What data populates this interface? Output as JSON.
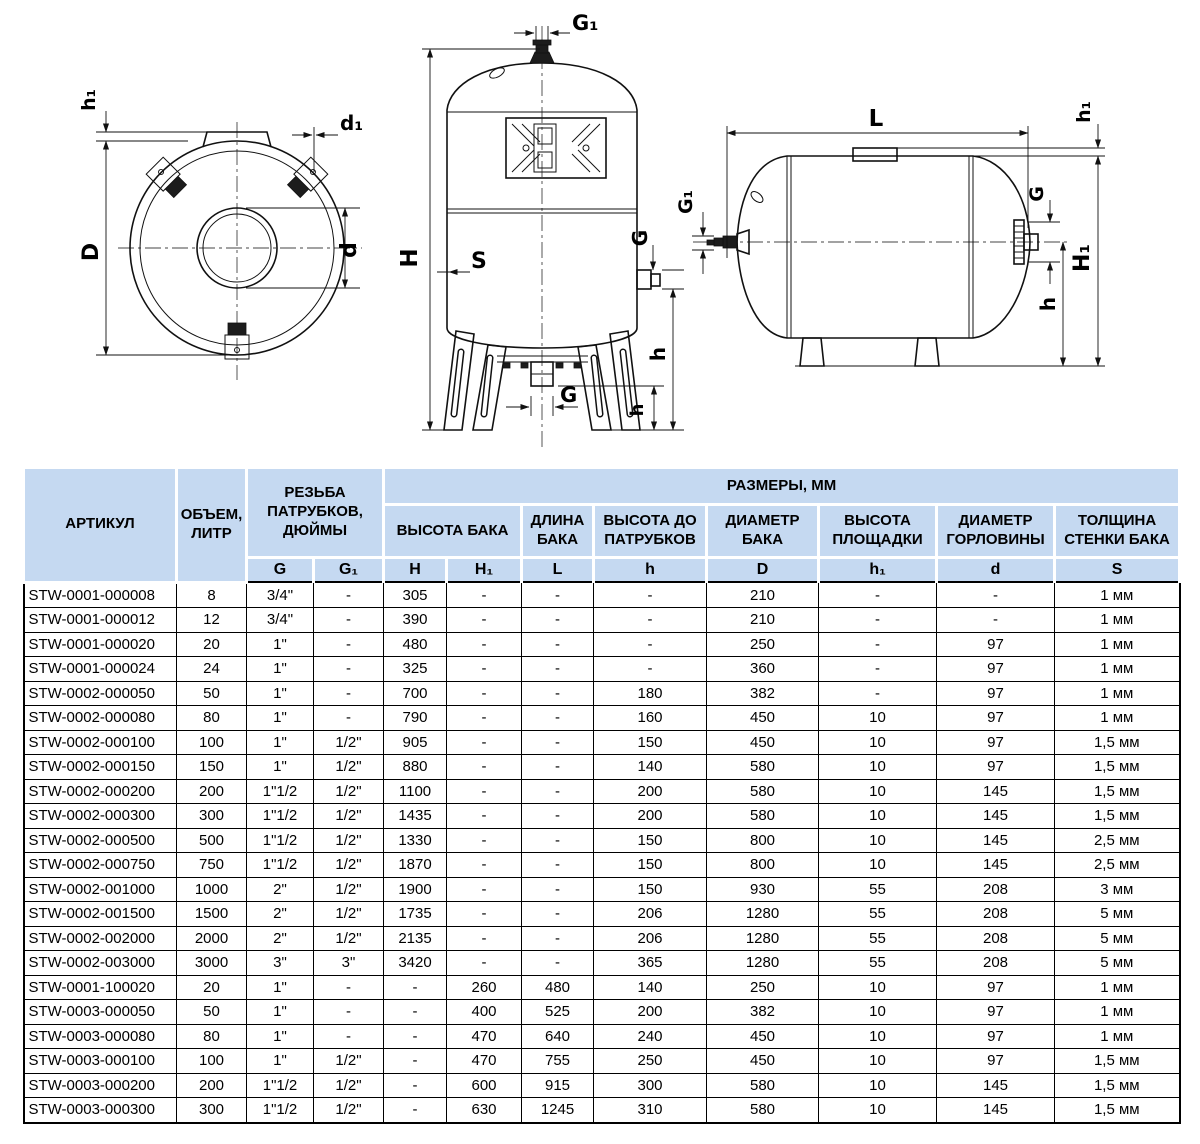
{
  "diagrams": {
    "top_view": {
      "labels": {
        "h1": "h₁",
        "D": "D",
        "d1": "d₁",
        "d": "d"
      }
    },
    "vertical_tank": {
      "labels": {
        "G1": "G₁",
        "H": "H",
        "S": "S",
        "G_side": "G",
        "h_side": "h",
        "h_bottom": "h",
        "G_bottom": "G"
      }
    },
    "horizontal_tank": {
      "labels": {
        "L": "L",
        "h1": "h₁",
        "G1": "G₁",
        "G": "G",
        "H1": "H₁",
        "h": "h"
      }
    }
  },
  "table": {
    "colors": {
      "header_bg": "#c5d9f1",
      "grid": "#000000",
      "header_divider": "#ffffff"
    },
    "header": {
      "article": "АРТИКУЛ",
      "volume": "ОБЪЕМ, ЛИТР",
      "thread": "РЕЗЬБА ПАТРУБКОВ, ДЮЙМЫ",
      "sizes": "РАЗМЕРЫ, ММ",
      "groups": [
        "ВЫСОТА БАКА",
        "ДЛИНА БАКА",
        "ВЫСОТА ДО ПАТРУБКОВ",
        "ДИАМЕТР БАКА",
        "ВЫСОТА ПЛОЩАДКИ",
        "ДИАМЕТР ГОРЛОВИНЫ",
        "ТОЛЩИНА СТЕНКИ БАКА"
      ],
      "letters": [
        "G",
        "G₁",
        "H",
        "H₁",
        "L",
        "h",
        "D",
        "h₁",
        "d",
        "S"
      ]
    },
    "rows": [
      [
        "STW-0001-000008",
        "8",
        "3/4\"",
        "-",
        "305",
        "-",
        "-",
        "-",
        "210",
        "-",
        "-",
        "1 мм"
      ],
      [
        "STW-0001-000012",
        "12",
        "3/4\"",
        "-",
        "390",
        "-",
        "-",
        "-",
        "210",
        "-",
        "-",
        "1 мм"
      ],
      [
        "STW-0001-000020",
        "20",
        "1\"",
        "-",
        "480",
        "-",
        "-",
        "-",
        "250",
        "-",
        "97",
        "1 мм"
      ],
      [
        "STW-0001-000024",
        "24",
        "1\"",
        "-",
        "325",
        "-",
        "-",
        "-",
        "360",
        "-",
        "97",
        "1 мм"
      ],
      [
        "STW-0002-000050",
        "50",
        "1\"",
        "-",
        "700",
        "-",
        "-",
        "180",
        "382",
        "-",
        "97",
        "1 мм"
      ],
      [
        "STW-0002-000080",
        "80",
        "1\"",
        "-",
        "790",
        "-",
        "-",
        "160",
        "450",
        "10",
        "97",
        "1 мм"
      ],
      [
        "STW-0002-000100",
        "100",
        "1\"",
        "1/2\"",
        "905",
        "-",
        "-",
        "150",
        "450",
        "10",
        "97",
        "1,5 мм"
      ],
      [
        "STW-0002-000150",
        "150",
        "1\"",
        "1/2\"",
        "880",
        "-",
        "-",
        "140",
        "580",
        "10",
        "97",
        "1,5 мм"
      ],
      [
        "STW-0002-000200",
        "200",
        "1\"1/2",
        "1/2\"",
        "1100",
        "-",
        "-",
        "200",
        "580",
        "10",
        "145",
        "1,5 мм"
      ],
      [
        "STW-0002-000300",
        "300",
        "1\"1/2",
        "1/2\"",
        "1435",
        "-",
        "-",
        "200",
        "580",
        "10",
        "145",
        "1,5 мм"
      ],
      [
        "STW-0002-000500",
        "500",
        "1\"1/2",
        "1/2\"",
        "1330",
        "-",
        "-",
        "150",
        "800",
        "10",
        "145",
        "2,5 мм"
      ],
      [
        "STW-0002-000750",
        "750",
        "1\"1/2",
        "1/2\"",
        "1870",
        "-",
        "-",
        "150",
        "800",
        "10",
        "145",
        "2,5 мм"
      ],
      [
        "STW-0002-001000",
        "1000",
        "2\"",
        "1/2\"",
        "1900",
        "-",
        "-",
        "150",
        "930",
        "55",
        "208",
        "3 мм"
      ],
      [
        "STW-0002-001500",
        "1500",
        "2\"",
        "1/2\"",
        "1735",
        "-",
        "-",
        "206",
        "1280",
        "55",
        "208",
        "5 мм"
      ],
      [
        "STW-0002-002000",
        "2000",
        "2\"",
        "1/2\"",
        "2135",
        "-",
        "-",
        "206",
        "1280",
        "55",
        "208",
        "5 мм"
      ],
      [
        "STW-0002-003000",
        "3000",
        "3\"",
        "3\"",
        "3420",
        "-",
        "-",
        "365",
        "1280",
        "55",
        "208",
        "5 мм"
      ],
      [
        "STW-0001-100020",
        "20",
        "1\"",
        "-",
        "-",
        "260",
        "480",
        "140",
        "250",
        "10",
        "97",
        "1 мм"
      ],
      [
        "STW-0003-000050",
        "50",
        "1\"",
        "-",
        "-",
        "400",
        "525",
        "200",
        "382",
        "10",
        "97",
        "1 мм"
      ],
      [
        "STW-0003-000080",
        "80",
        "1\"",
        "-",
        "-",
        "470",
        "640",
        "240",
        "450",
        "10",
        "97",
        "1 мм"
      ],
      [
        "STW-0003-000100",
        "100",
        "1\"",
        "1/2\"",
        "-",
        "470",
        "755",
        "250",
        "450",
        "10",
        "97",
        "1,5 мм"
      ],
      [
        "STW-0003-000200",
        "200",
        "1\"1/2",
        "1/2\"",
        "-",
        "600",
        "915",
        "300",
        "580",
        "10",
        "145",
        "1,5 мм"
      ],
      [
        "STW-0003-000300",
        "300",
        "1\"1/2",
        "1/2\"",
        "-",
        "630",
        "1245",
        "310",
        "580",
        "10",
        "145",
        "1,5 мм"
      ]
    ]
  }
}
